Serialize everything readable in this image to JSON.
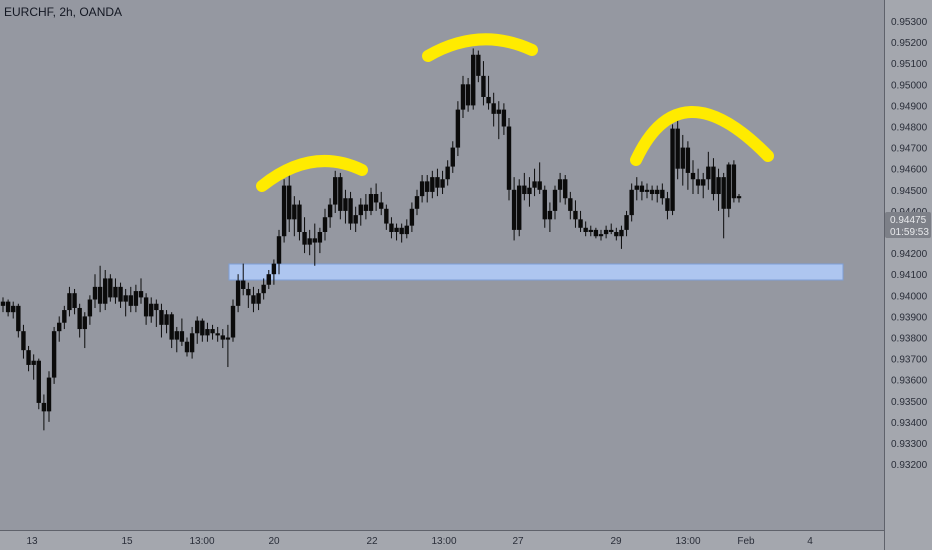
{
  "header": {
    "title": "EURCHF, 2h, OANDA"
  },
  "price_axis": {
    "ticks": [
      "0.95300",
      "0.95200",
      "0.95100",
      "0.95000",
      "0.94900",
      "0.94800",
      "0.94700",
      "0.94600",
      "0.94500",
      "0.94400",
      "0.94300",
      "0.94200",
      "0.94100",
      "0.94000",
      "0.93900",
      "0.93800",
      "0.93700",
      "0.93600",
      "0.93500",
      "0.93400",
      "0.93300",
      "0.93200"
    ],
    "last_price": "0.94475",
    "countdown": "01:59:53"
  },
  "time_axis": {
    "ticks": [
      "13",
      "15",
      "13:00",
      "20",
      "22",
      "13:00",
      "27",
      "29",
      "13:00",
      "Feb",
      "4"
    ]
  },
  "colors": {
    "background": "#9598a1",
    "axis_background": "#a4a7ae",
    "candle": "#0b0b0b",
    "highlight_arc": "#ffeb00",
    "support_zone": "#aec6f0",
    "support_zone_border": "#7d9ed6",
    "price_label": "#7d8088"
  },
  "chart_data": {
    "type": "candlestick",
    "title": "EURCHF, 2h, OANDA",
    "ylim": [
      0.932,
      0.9536
    ],
    "y_ticks": [
      0.953,
      0.952,
      0.951,
      0.95,
      0.949,
      0.948,
      0.947,
      0.946,
      0.945,
      0.944,
      0.943,
      0.942,
      0.941,
      0.94,
      0.939,
      0.938,
      0.937,
      0.936,
      0.935,
      0.934,
      0.933,
      0.932
    ],
    "x_tick_labels": [
      "13",
      "15",
      "13:00",
      "20",
      "22",
      "13:00",
      "27",
      "29",
      "13:00",
      "Feb",
      "4"
    ],
    "last_price": 0.94475,
    "support_zone": {
      "low": 0.9423,
      "high": 0.9429
    },
    "ohlc": [
      [
        0.9395,
        0.9399,
        0.9392,
        0.9397
      ],
      [
        0.9397,
        0.9398,
        0.939,
        0.9392
      ],
      [
        0.9392,
        0.9397,
        0.9389,
        0.9395
      ],
      [
        0.9395,
        0.9396,
        0.938,
        0.9383
      ],
      [
        0.9383,
        0.9386,
        0.937,
        0.9374
      ],
      [
        0.9374,
        0.9376,
        0.9364,
        0.9367
      ],
      [
        0.9367,
        0.9372,
        0.936,
        0.9369
      ],
      [
        0.9369,
        0.937,
        0.9346,
        0.9349
      ],
      [
        0.9349,
        0.9353,
        0.9336,
        0.9345
      ],
      [
        0.9345,
        0.9364,
        0.934,
        0.9361
      ],
      [
        0.9361,
        0.9385,
        0.9358,
        0.9383
      ],
      [
        0.9383,
        0.939,
        0.9378,
        0.9387
      ],
      [
        0.9387,
        0.9395,
        0.9384,
        0.9393
      ],
      [
        0.9393,
        0.9404,
        0.939,
        0.9401
      ],
      [
        0.9401,
        0.9403,
        0.9391,
        0.9394
      ],
      [
        0.9394,
        0.9396,
        0.938,
        0.9384
      ],
      [
        0.9384,
        0.9392,
        0.9375,
        0.939
      ],
      [
        0.939,
        0.94,
        0.9386,
        0.9398
      ],
      [
        0.9398,
        0.941,
        0.9394,
        0.9404
      ],
      [
        0.9404,
        0.9414,
        0.9392,
        0.9396
      ],
      [
        0.9396,
        0.9412,
        0.9393,
        0.9408
      ],
      [
        0.9408,
        0.941,
        0.9397,
        0.9399
      ],
      [
        0.9399,
        0.9408,
        0.9396,
        0.9404
      ],
      [
        0.9404,
        0.9406,
        0.9394,
        0.9397
      ],
      [
        0.9397,
        0.9403,
        0.939,
        0.94
      ],
      [
        0.94,
        0.9404,
        0.9392,
        0.9395
      ],
      [
        0.9395,
        0.9405,
        0.9392,
        0.9402
      ],
      [
        0.9402,
        0.9408,
        0.9396,
        0.9399
      ],
      [
        0.9399,
        0.9401,
        0.9386,
        0.939
      ],
      [
        0.939,
        0.9399,
        0.9387,
        0.9396
      ],
      [
        0.9396,
        0.9398,
        0.9385,
        0.9393
      ],
      [
        0.9393,
        0.9396,
        0.938,
        0.9386
      ],
      [
        0.9386,
        0.9393,
        0.9382,
        0.9391
      ],
      [
        0.9391,
        0.9392,
        0.9375,
        0.9379
      ],
      [
        0.9379,
        0.9385,
        0.9373,
        0.9383
      ],
      [
        0.9383,
        0.9389,
        0.9376,
        0.9378
      ],
      [
        0.9378,
        0.938,
        0.9371,
        0.9373
      ],
      [
        0.9373,
        0.9385,
        0.937,
        0.9382
      ],
      [
        0.9382,
        0.939,
        0.9377,
        0.9388
      ],
      [
        0.9388,
        0.9389,
        0.9378,
        0.9381
      ],
      [
        0.9381,
        0.9387,
        0.9378,
        0.9384
      ],
      [
        0.9384,
        0.9386,
        0.9379,
        0.9382
      ],
      [
        0.9382,
        0.9385,
        0.9378,
        0.9381
      ],
      [
        0.9381,
        0.9384,
        0.9375,
        0.9379
      ],
      [
        0.9379,
        0.9386,
        0.9366,
        0.938
      ],
      [
        0.938,
        0.9398,
        0.9378,
        0.9395
      ],
      [
        0.9395,
        0.941,
        0.9392,
        0.9407
      ],
      [
        0.9407,
        0.9415,
        0.94,
        0.9403
      ],
      [
        0.9403,
        0.9406,
        0.9394,
        0.94
      ],
      [
        0.94,
        0.9404,
        0.9392,
        0.9396
      ],
      [
        0.9396,
        0.9403,
        0.9393,
        0.9401
      ],
      [
        0.9401,
        0.9408,
        0.9398,
        0.9405
      ],
      [
        0.9405,
        0.9412,
        0.9403,
        0.941
      ],
      [
        0.941,
        0.9417,
        0.9405,
        0.9415
      ],
      [
        0.9415,
        0.9431,
        0.941,
        0.9428
      ],
      [
        0.9428,
        0.9455,
        0.9425,
        0.9452
      ],
      [
        0.9452,
        0.9461,
        0.943,
        0.9436
      ],
      [
        0.9436,
        0.9447,
        0.9428,
        0.9443
      ],
      [
        0.9443,
        0.9445,
        0.9426,
        0.943
      ],
      [
        0.943,
        0.9437,
        0.942,
        0.9424
      ],
      [
        0.9424,
        0.9431,
        0.9419,
        0.9427
      ],
      [
        0.9427,
        0.9434,
        0.9414,
        0.9425
      ],
      [
        0.9425,
        0.9432,
        0.942,
        0.943
      ],
      [
        0.943,
        0.9441,
        0.9426,
        0.9437
      ],
      [
        0.9437,
        0.9446,
        0.9432,
        0.9443
      ],
      [
        0.9443,
        0.9459,
        0.9439,
        0.9456
      ],
      [
        0.9456,
        0.9458,
        0.9436,
        0.944
      ],
      [
        0.944,
        0.945,
        0.9434,
        0.9446
      ],
      [
        0.9446,
        0.9449,
        0.9431,
        0.9434
      ],
      [
        0.9434,
        0.9442,
        0.943,
        0.9438
      ],
      [
        0.9438,
        0.9446,
        0.9433,
        0.9443
      ],
      [
        0.9443,
        0.9448,
        0.9436,
        0.944
      ],
      [
        0.944,
        0.9451,
        0.9438,
        0.9448
      ],
      [
        0.9448,
        0.9453,
        0.944,
        0.9444
      ],
      [
        0.9444,
        0.9449,
        0.9438,
        0.9441
      ],
      [
        0.9441,
        0.9443,
        0.9431,
        0.9434
      ],
      [
        0.9434,
        0.9437,
        0.9427,
        0.943
      ],
      [
        0.943,
        0.9434,
        0.9426,
        0.9432
      ],
      [
        0.9432,
        0.9434,
        0.9425,
        0.9429
      ],
      [
        0.9429,
        0.9436,
        0.9427,
        0.9433
      ],
      [
        0.9433,
        0.9444,
        0.943,
        0.9441
      ],
      [
        0.9441,
        0.945,
        0.9438,
        0.9447
      ],
      [
        0.9447,
        0.9457,
        0.9444,
        0.9454
      ],
      [
        0.9454,
        0.9457,
        0.9444,
        0.9449
      ],
      [
        0.9449,
        0.9459,
        0.9446,
        0.9456
      ],
      [
        0.9456,
        0.946,
        0.9447,
        0.9451
      ],
      [
        0.9451,
        0.9459,
        0.9448,
        0.9455
      ],
      [
        0.9455,
        0.9464,
        0.9452,
        0.9461
      ],
      [
        0.9461,
        0.9473,
        0.9458,
        0.947
      ],
      [
        0.947,
        0.9492,
        0.9466,
        0.9488
      ],
      [
        0.9488,
        0.9504,
        0.9484,
        0.95
      ],
      [
        0.95,
        0.9503,
        0.9487,
        0.949
      ],
      [
        0.949,
        0.9517,
        0.9488,
        0.9514
      ],
      [
        0.9514,
        0.9516,
        0.9501,
        0.9504
      ],
      [
        0.9504,
        0.9511,
        0.949,
        0.9494
      ],
      [
        0.9494,
        0.9504,
        0.9488,
        0.9491
      ],
      [
        0.9491,
        0.9496,
        0.948,
        0.9486
      ],
      [
        0.9486,
        0.9492,
        0.9474,
        0.9488
      ],
      [
        0.9488,
        0.9491,
        0.9476,
        0.948
      ],
      [
        0.948,
        0.9484,
        0.9445,
        0.945
      ],
      [
        0.945,
        0.9456,
        0.9426,
        0.9431
      ],
      [
        0.9431,
        0.9455,
        0.9428,
        0.9452
      ],
      [
        0.9452,
        0.9458,
        0.9445,
        0.9448
      ],
      [
        0.9448,
        0.9456,
        0.9442,
        0.9451
      ],
      [
        0.9451,
        0.946,
        0.9447,
        0.9454
      ],
      [
        0.9454,
        0.9463,
        0.9448,
        0.945
      ],
      [
        0.945,
        0.9452,
        0.9432,
        0.9436
      ],
      [
        0.9436,
        0.9444,
        0.943,
        0.944
      ],
      [
        0.944,
        0.9452,
        0.9436,
        0.945
      ],
      [
        0.945,
        0.9458,
        0.9444,
        0.9455
      ],
      [
        0.9455,
        0.9457,
        0.9443,
        0.9446
      ],
      [
        0.9446,
        0.9449,
        0.9436,
        0.944
      ],
      [
        0.944,
        0.9445,
        0.9432,
        0.9436
      ],
      [
        0.9436,
        0.944,
        0.943,
        0.9432
      ],
      [
        0.9432,
        0.9435,
        0.9428,
        0.943
      ],
      [
        0.943,
        0.9433,
        0.9428,
        0.9431
      ],
      [
        0.9431,
        0.9432,
        0.9427,
        0.9428
      ],
      [
        0.9428,
        0.9431,
        0.9426,
        0.9429
      ],
      [
        0.9429,
        0.9433,
        0.9427,
        0.9431
      ],
      [
        0.9431,
        0.9434,
        0.9429,
        0.943
      ],
      [
        0.943,
        0.9432,
        0.9426,
        0.9428
      ],
      [
        0.9428,
        0.9433,
        0.9422,
        0.9431
      ],
      [
        0.9431,
        0.944,
        0.9428,
        0.9438
      ],
      [
        0.9438,
        0.9453,
        0.9435,
        0.945
      ],
      [
        0.945,
        0.9456,
        0.9445,
        0.9452
      ],
      [
        0.9452,
        0.9454,
        0.9445,
        0.9449
      ],
      [
        0.9449,
        0.9453,
        0.9446,
        0.945
      ],
      [
        0.945,
        0.9452,
        0.9445,
        0.9448
      ],
      [
        0.9448,
        0.9452,
        0.9444,
        0.945
      ],
      [
        0.945,
        0.9453,
        0.9443,
        0.9446
      ],
      [
        0.9446,
        0.9449,
        0.9436,
        0.944
      ],
      [
        0.944,
        0.9481,
        0.9438,
        0.9479
      ],
      [
        0.9479,
        0.9485,
        0.9455,
        0.946
      ],
      [
        0.946,
        0.9476,
        0.9452,
        0.947
      ],
      [
        0.947,
        0.9473,
        0.945,
        0.9458
      ],
      [
        0.9458,
        0.9464,
        0.9448,
        0.9455
      ],
      [
        0.9455,
        0.946,
        0.9448,
        0.9452
      ],
      [
        0.9452,
        0.9458,
        0.9446,
        0.9455
      ],
      [
        0.9455,
        0.9468,
        0.945,
        0.9461
      ],
      [
        0.9461,
        0.9465,
        0.9445,
        0.9448
      ],
      [
        0.9448,
        0.946,
        0.944,
        0.9456
      ],
      [
        0.9456,
        0.9458,
        0.9427,
        0.9441
      ],
      [
        0.9441,
        0.9463,
        0.9437,
        0.9462
      ],
      [
        0.9462,
        0.9464,
        0.9444,
        0.9446
      ],
      [
        0.9446,
        0.9448,
        0.9444,
        0.9447
      ]
    ]
  },
  "annotations": {
    "arc_count": 3,
    "zone_count": 1
  }
}
